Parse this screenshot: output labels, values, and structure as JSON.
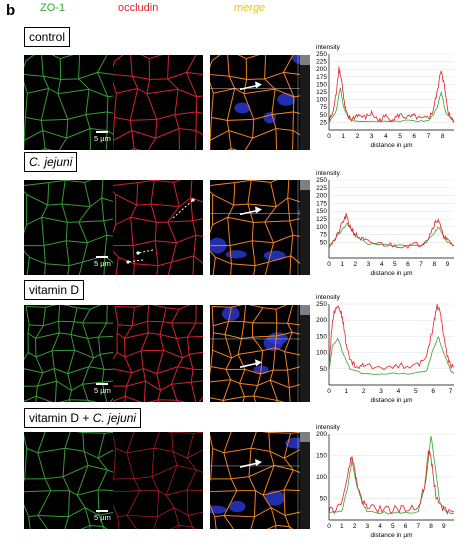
{
  "panel_letter": "b",
  "channels": {
    "zo1": "ZO-1",
    "occludin": "occludin",
    "merge": "merge"
  },
  "colors": {
    "zo1": "#3aa335",
    "occludin": "#e0242a",
    "merge": "#e8c020",
    "background": "#000000",
    "nuclei": "#2a3bd8"
  },
  "scale_bar_label": "5 µm",
  "conditions": [
    {
      "label": "control",
      "italic": false
    },
    {
      "label": "C. jejuni",
      "italic": true
    },
    {
      "label": "vitamin D",
      "italic": false
    },
    {
      "label": "vitamin D + C. jejuni",
      "italic_part": "C. jejuni",
      "plain_part": "vitamin D + "
    }
  ],
  "plot_labels": {
    "ylabel": "intensity",
    "xlabel": "distance in µm"
  },
  "chart_data": [
    {
      "type": "line",
      "ylabel": "intensity",
      "xlabel": "distance in µm",
      "ylim": [
        0,
        250
      ],
      "yticks": [
        25,
        50,
        75,
        100,
        125,
        150,
        175,
        200,
        225,
        250
      ],
      "xticks": [
        0,
        1,
        2,
        3,
        4,
        5,
        6,
        7,
        8
      ],
      "xlim": [
        0,
        8.8
      ],
      "series": [
        {
          "color": "#e0242a",
          "x": [
            0,
            0.3,
            0.5,
            0.7,
            0.9,
            1.1,
            1.3,
            1.6,
            2,
            2.5,
            3,
            3.5,
            4,
            4.5,
            5,
            5.5,
            6,
            6.5,
            7,
            7.3,
            7.6,
            7.9,
            8.1,
            8.3,
            8.5,
            8.8
          ],
          "y": [
            30,
            60,
            120,
            205,
            160,
            80,
            45,
            35,
            50,
            40,
            55,
            30,
            45,
            35,
            50,
            40,
            45,
            35,
            40,
            60,
            120,
            200,
            150,
            80,
            45,
            30
          ]
        },
        {
          "color": "#3aa335",
          "x": [
            0,
            0.5,
            0.8,
            1,
            1.4,
            2,
            4,
            6,
            7,
            7.6,
            7.9,
            8.2,
            8.8
          ],
          "y": [
            25,
            60,
            140,
            80,
            35,
            28,
            30,
            30,
            30,
            70,
            125,
            60,
            28
          ]
        }
      ]
    },
    {
      "type": "line",
      "ylabel": "intensity",
      "xlabel": "distance in µm",
      "ylim": [
        0,
        250
      ],
      "yticks": [
        50,
        75,
        100,
        125,
        150,
        175,
        200,
        225,
        250
      ],
      "xticks": [
        0,
        1,
        2,
        3,
        4,
        5,
        6,
        7,
        8,
        9
      ],
      "xlim": [
        0,
        9.5
      ],
      "series": [
        {
          "color": "#e0242a",
          "x": [
            0,
            0.5,
            1,
            1.3,
            1.6,
            2,
            2.5,
            3,
            4,
            5,
            6,
            7,
            7.5,
            8,
            8.3,
            8.6,
            9,
            9.5
          ],
          "y": [
            40,
            60,
            110,
            135,
            100,
            75,
            60,
            50,
            45,
            40,
            40,
            45,
            60,
            110,
            125,
            80,
            55,
            40
          ]
        },
        {
          "color": "#3aa335",
          "x": [
            0,
            1,
            1.4,
            2,
            3,
            5,
            7,
            8,
            8.3,
            9,
            9.5
          ],
          "y": [
            40,
            90,
            110,
            70,
            45,
            40,
            40,
            80,
            100,
            50,
            40
          ]
        }
      ]
    },
    {
      "type": "line",
      "ylabel": "intensity",
      "xlabel": "distance in µm",
      "ylim": [
        0,
        250
      ],
      "yticks": [
        50,
        100,
        150,
        200,
        250
      ],
      "xticks": [
        0,
        1,
        2,
        3,
        4,
        5,
        6,
        7
      ],
      "xlim": [
        0,
        7.2
      ],
      "series": [
        {
          "color": "#e0242a",
          "x": [
            0,
            0.2,
            0.4,
            0.6,
            0.8,
            1,
            1.3,
            1.6,
            2,
            3,
            4,
            5,
            5.6,
            6,
            6.2,
            6.4,
            6.6,
            6.9,
            7.2
          ],
          "y": [
            60,
            200,
            245,
            240,
            200,
            120,
            70,
            55,
            60,
            55,
            60,
            60,
            80,
            180,
            245,
            230,
            150,
            70,
            55
          ]
        },
        {
          "color": "#3aa335",
          "x": [
            0,
            0.2,
            0.5,
            0.8,
            1.2,
            2,
            4,
            5.6,
            6,
            6.3,
            6.6,
            7,
            7.2
          ],
          "y": [
            40,
            120,
            145,
            100,
            50,
            35,
            35,
            40,
            110,
            150,
            100,
            45,
            35
          ]
        }
      ]
    },
    {
      "type": "line",
      "ylabel": "intensity",
      "xlabel": "distance in µm",
      "ylim": [
        0,
        200
      ],
      "yticks": [
        50,
        100,
        150,
        200
      ],
      "xticks": [
        0,
        1,
        2,
        3,
        4,
        5,
        6,
        7,
        8,
        9
      ],
      "xlim": [
        0,
        9.8
      ],
      "series": [
        {
          "color": "#e0242a",
          "x": [
            0,
            0.5,
            1,
            1.5,
            1.8,
            2.1,
            2.5,
            3,
            4,
            5,
            6,
            7,
            7.5,
            7.8,
            8.1,
            8.4,
            9,
            9.8
          ],
          "y": [
            20,
            25,
            40,
            110,
            150,
            100,
            50,
            30,
            25,
            25,
            25,
            30,
            80,
            170,
            120,
            50,
            25,
            20
          ]
        },
        {
          "color": "#3aa335",
          "x": [
            0,
            1,
            1.5,
            1.8,
            2.1,
            2.6,
            3,
            5,
            7,
            7.6,
            8,
            8.3,
            8.7,
            9.2,
            9.8
          ],
          "y": [
            15,
            20,
            80,
            140,
            90,
            40,
            20,
            15,
            20,
            90,
            195,
            130,
            40,
            20,
            15
          ]
        }
      ]
    }
  ]
}
